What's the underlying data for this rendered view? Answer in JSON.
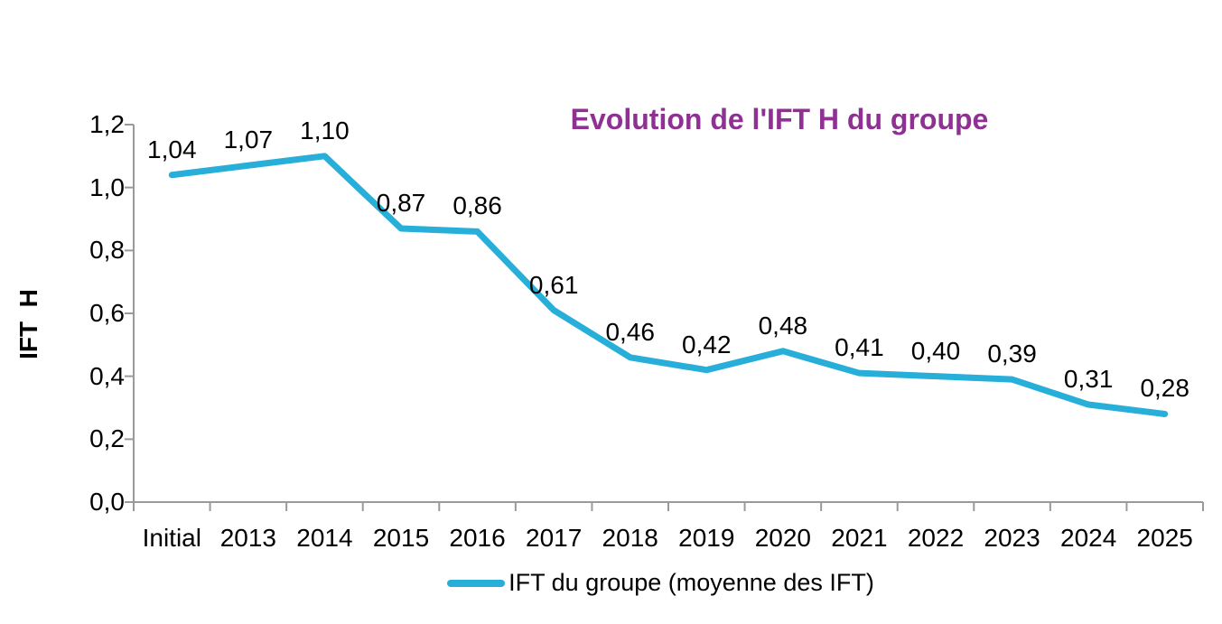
{
  "chart_data": {
    "type": "line",
    "title": "Evolution de l'IFT H du groupe",
    "ylabel": "IFT  H",
    "categories": [
      "Initial",
      "2013",
      "2014",
      "2015",
      "2016",
      "2017",
      "2018",
      "2019",
      "2020",
      "2021",
      "2022",
      "2023",
      "2024",
      "2025"
    ],
    "values": [
      1.04,
      1.07,
      1.1,
      0.87,
      0.86,
      0.61,
      0.46,
      0.42,
      0.48,
      0.41,
      0.4,
      0.39,
      0.31,
      0.28
    ],
    "point_labels": [
      "1,04",
      "1,07",
      "1,10",
      "0,87",
      "0,86",
      "0,61",
      "0,46",
      "0,42",
      "0,48",
      "0,41",
      "0,40",
      "0,39",
      "0,31",
      "0,28"
    ],
    "ytick_values": [
      0.0,
      0.2,
      0.4,
      0.6,
      0.8,
      1.0,
      1.2
    ],
    "ytick_labels": [
      "0,0",
      "0,2",
      "0,4",
      "0,6",
      "0,8",
      "1,0",
      "1,2"
    ],
    "ylim": [
      0.0,
      1.2
    ],
    "grid": "off",
    "legend_position": "bottom-center",
    "series": [
      {
        "name": "IFT du groupe (moyenne des IFT)",
        "values": [
          1.04,
          1.07,
          1.1,
          0.87,
          0.86,
          0.61,
          0.46,
          0.42,
          0.48,
          0.41,
          0.4,
          0.39,
          0.31,
          0.28
        ]
      }
    ],
    "legend_label": "IFT du groupe (moyenne des IFT)",
    "colors": {
      "line": "#27AED9",
      "title": "#8E3192",
      "axis": "#9A9A9A",
      "text": "#000000"
    }
  }
}
